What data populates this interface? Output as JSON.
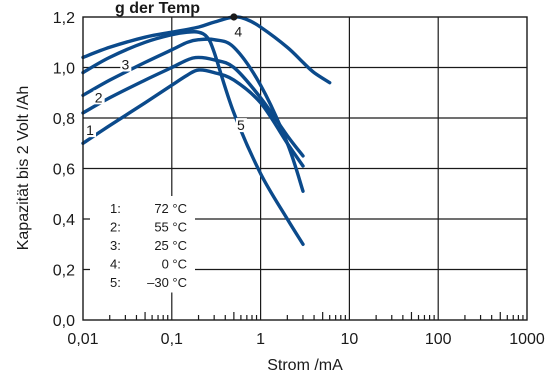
{
  "chart_data": {
    "type": "line",
    "title": "",
    "title_fragment": "g der Temp",
    "xlabel": "Strom /mA",
    "ylabel": "Kapazität bis 2 Volt /Ah",
    "x_scale": "log",
    "xlim": [
      0.01,
      1000
    ],
    "ylim": [
      0.0,
      1.2
    ],
    "x_ticks": [
      0.01,
      0.1,
      1,
      10,
      100,
      1000
    ],
    "x_tick_labels": [
      "0,01",
      "0,1",
      "1",
      "10",
      "100",
      "1000"
    ],
    "y_ticks": [
      0.0,
      0.2,
      0.4,
      0.6,
      0.8,
      1.0,
      1.2
    ],
    "y_tick_labels": [
      "0,0",
      "0,2",
      "0,4",
      "0,6",
      "0,8",
      "1,0",
      "1,2"
    ],
    "grid": true,
    "line_color": "#0b4a8b",
    "series": [
      {
        "name": "1",
        "x": [
          0.01,
          0.02,
          0.05,
          0.1,
          0.15,
          0.2,
          0.3,
          0.5,
          1,
          2,
          3
        ],
        "y": [
          0.7,
          0.77,
          0.86,
          0.93,
          0.97,
          0.99,
          0.98,
          0.95,
          0.86,
          0.7,
          0.61
        ]
      },
      {
        "name": "2",
        "x": [
          0.01,
          0.02,
          0.05,
          0.1,
          0.15,
          0.2,
          0.3,
          0.5,
          1,
          2,
          3
        ],
        "y": [
          0.82,
          0.88,
          0.95,
          1.0,
          1.03,
          1.04,
          1.03,
          1.0,
          0.88,
          0.73,
          0.65
        ]
      },
      {
        "name": "3",
        "x": [
          0.01,
          0.02,
          0.05,
          0.1,
          0.15,
          0.2,
          0.3,
          0.5,
          1,
          2,
          3
        ],
        "y": [
          0.89,
          0.95,
          1.02,
          1.07,
          1.1,
          1.11,
          1.11,
          1.08,
          0.93,
          0.7,
          0.51
        ]
      },
      {
        "name": "4",
        "x": [
          0.01,
          0.02,
          0.05,
          0.1,
          0.2,
          0.3,
          0.5,
          0.7,
          1,
          2,
          3,
          4,
          6
        ],
        "y": [
          1.04,
          1.08,
          1.12,
          1.14,
          1.16,
          1.18,
          1.2,
          1.19,
          1.16,
          1.08,
          1.02,
          0.98,
          0.94
        ]
      },
      {
        "name": "5",
        "x": [
          0.01,
          0.02,
          0.05,
          0.1,
          0.15,
          0.2,
          0.25,
          0.3,
          0.5,
          1,
          2,
          3
        ],
        "y": [
          0.98,
          1.04,
          1.1,
          1.13,
          1.14,
          1.14,
          1.12,
          1.06,
          0.82,
          0.58,
          0.4,
          0.3
        ]
      }
    ],
    "curve_labels": [
      {
        "text": "1",
        "x": 0.012,
        "y": 0.74
      },
      {
        "text": "2",
        "x": 0.015,
        "y": 0.87
      },
      {
        "text": "3",
        "x": 0.03,
        "y": 1.0
      },
      {
        "text": "4",
        "x": 0.56,
        "y": 1.13
      },
      {
        "text": "5",
        "x": 0.6,
        "y": 0.76
      }
    ],
    "max_marker": {
      "x": 0.5,
      "y": 1.2
    },
    "legend": {
      "placement": "bottom-left",
      "entries": [
        {
          "id": "1:",
          "value": "72 °C"
        },
        {
          "id": "2:",
          "value": "55 °C"
        },
        {
          "id": "3:",
          "value": "25 °C"
        },
        {
          "id": "4:",
          "value": "0 °C"
        },
        {
          "id": "5:",
          "value": "–30 °C"
        }
      ]
    }
  }
}
